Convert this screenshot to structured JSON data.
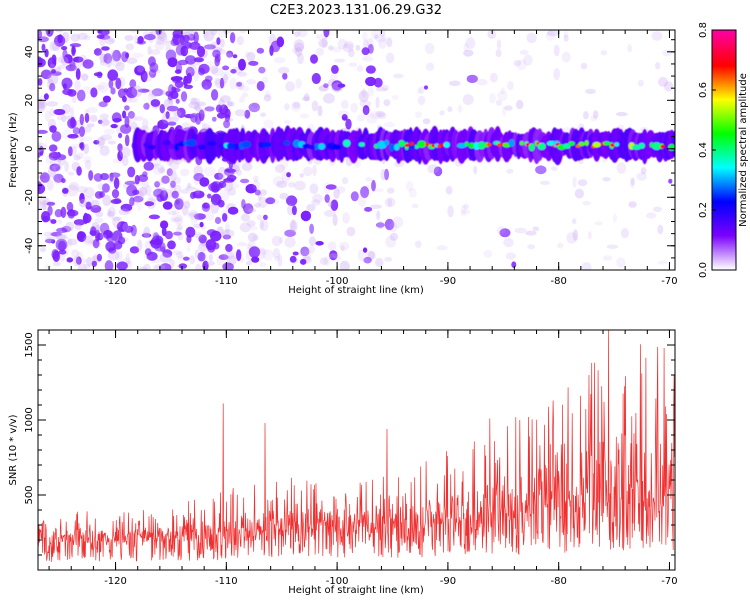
{
  "figure": {
    "title": "C2E3.2023.131.06.29.G32"
  },
  "chart_data": [
    {
      "type": "heatmap",
      "xlabel": "Height of straight line (km)",
      "ylabel": "Frequency (Hz)",
      "xlim": [
        -127,
        -69.5
      ],
      "ylim": [
        -50,
        49
      ],
      "xticks": [
        -120,
        -110,
        -100,
        -90,
        -80,
        -70
      ],
      "yticks": [
        -40,
        -20,
        0,
        20,
        40
      ],
      "colorbar": {
        "label": "Normalized spectral amplitude",
        "range": [
          0,
          0.8
        ],
        "ticks": [
          "0.0",
          "0.2",
          "0.4",
          "0.6",
          "0.8"
        ],
        "colors": [
          "#ffffff",
          "#7b00ff",
          "#0000ff",
          "#00ffff",
          "#00ff00",
          "#ffff00",
          "#ff0000",
          "#ff00a0"
        ]
      },
      "signal_band": {
        "x_start": -118,
        "x_end": -69.5,
        "frequency_center": 1.5,
        "frequency_width": 5
      },
      "noise_regions": [
        {
          "x_start": -127,
          "x_end": -109,
          "level": "high"
        },
        {
          "x_start": -109,
          "x_end": -95,
          "level": "medium"
        },
        {
          "x_start": -95,
          "x_end": -69.5,
          "level": "low"
        }
      ]
    },
    {
      "type": "line",
      "xlabel": "Height of straight line (km)",
      "ylabel": "SNR (10 * v/v)",
      "xlim": [
        -127,
        -69.5
      ],
      "ylim": [
        0,
        1600
      ],
      "xticks": [
        -120,
        -110,
        -100,
        -90,
        -80,
        -70
      ],
      "yticks": [
        500,
        1000,
        1500
      ],
      "series": [
        {
          "color": "#f03030",
          "envelope": {
            "x": [
              -127,
              -120,
              -115,
              -110,
              -105,
              -100,
              -95,
              -90,
              -85,
              -80,
              -75,
              -70,
              -69.5
            ],
            "baseline": [
              180,
              180,
              190,
              210,
              240,
              250,
              270,
              290,
              320,
              380,
              420,
              410,
              400
            ],
            "max": [
              420,
              380,
              420,
              560,
              620,
              600,
              650,
              800,
              1000,
              1150,
              1580,
              1480,
              1300
            ]
          },
          "peaks": [
            {
              "x": -110.3,
              "y": 1110
            },
            {
              "x": -106.5,
              "y": 980
            },
            {
              "x": -95.5,
              "y": 940
            },
            {
              "x": -86.2,
              "y": 1010
            },
            {
              "x": -83.5,
              "y": 1000
            },
            {
              "x": -80.5,
              "y": 1130
            },
            {
              "x": -77,
              "y": 1380
            },
            {
              "x": -75.5,
              "y": 1600
            },
            {
              "x": -72.5,
              "y": 1310
            },
            {
              "x": -70.5,
              "y": 1480
            }
          ]
        }
      ]
    }
  ]
}
